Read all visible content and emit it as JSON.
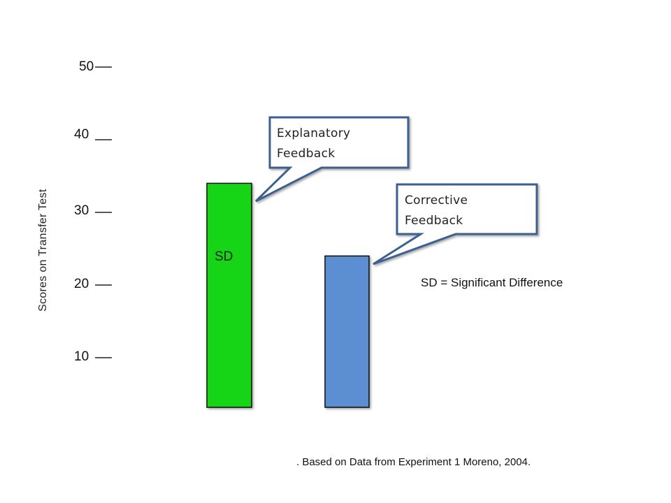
{
  "chart_data": {
    "type": "bar",
    "categories": [
      "Explanatory Feedback",
      "Corrective Feedback"
    ],
    "values": [
      34,
      24
    ],
    "colors": [
      "#19d419",
      "#5b8ed2"
    ],
    "bar_labels": [
      "SD",
      ""
    ],
    "y_ticks": [
      "10",
      "20",
      "30",
      "40",
      "50"
    ],
    "ylim": [
      0,
      50
    ],
    "ylabel": "Scores on Transfer Test",
    "xlabel": "",
    "title": "",
    "grid": false,
    "annotations": {
      "callouts": [
        {
          "lines": [
            "Explanatory",
            "Feedback"
          ],
          "points_to": "Explanatory Feedback"
        },
        {
          "lines": [
            "Corrective",
            "Feedback"
          ],
          "points_to": "Corrective Feedback"
        }
      ],
      "note": "SD = Significant Difference",
      "source": ".  Based on Data from Experiment 1  Moreno, 2004."
    }
  }
}
